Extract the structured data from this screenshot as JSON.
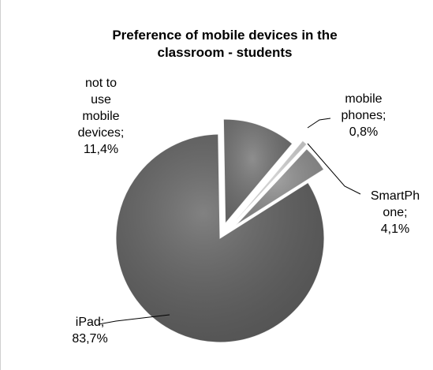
{
  "chart_data": {
    "type": "pie",
    "title_lines": [
      "Preference of mobile devices in the",
      "classroom - students"
    ],
    "slices": [
      {
        "label_lines": [
          "not to",
          "use",
          "mobile",
          "devices;",
          "11,4%"
        ],
        "value": 11.4,
        "color": "#6e6e6e"
      },
      {
        "label_lines": [
          "mobile",
          "phones;",
          "0,8%"
        ],
        "value": 0.8,
        "color": "#d2d2d2"
      },
      {
        "label_lines": [
          "SmartPh",
          "one;",
          "4,1%"
        ],
        "value": 4.1,
        "color": "#8c8c8c"
      },
      {
        "label_lines": [
          "iPad;",
          "83,7%"
        ],
        "value": 83.7,
        "color": "#5e5e5e"
      }
    ],
    "legend": "none"
  }
}
